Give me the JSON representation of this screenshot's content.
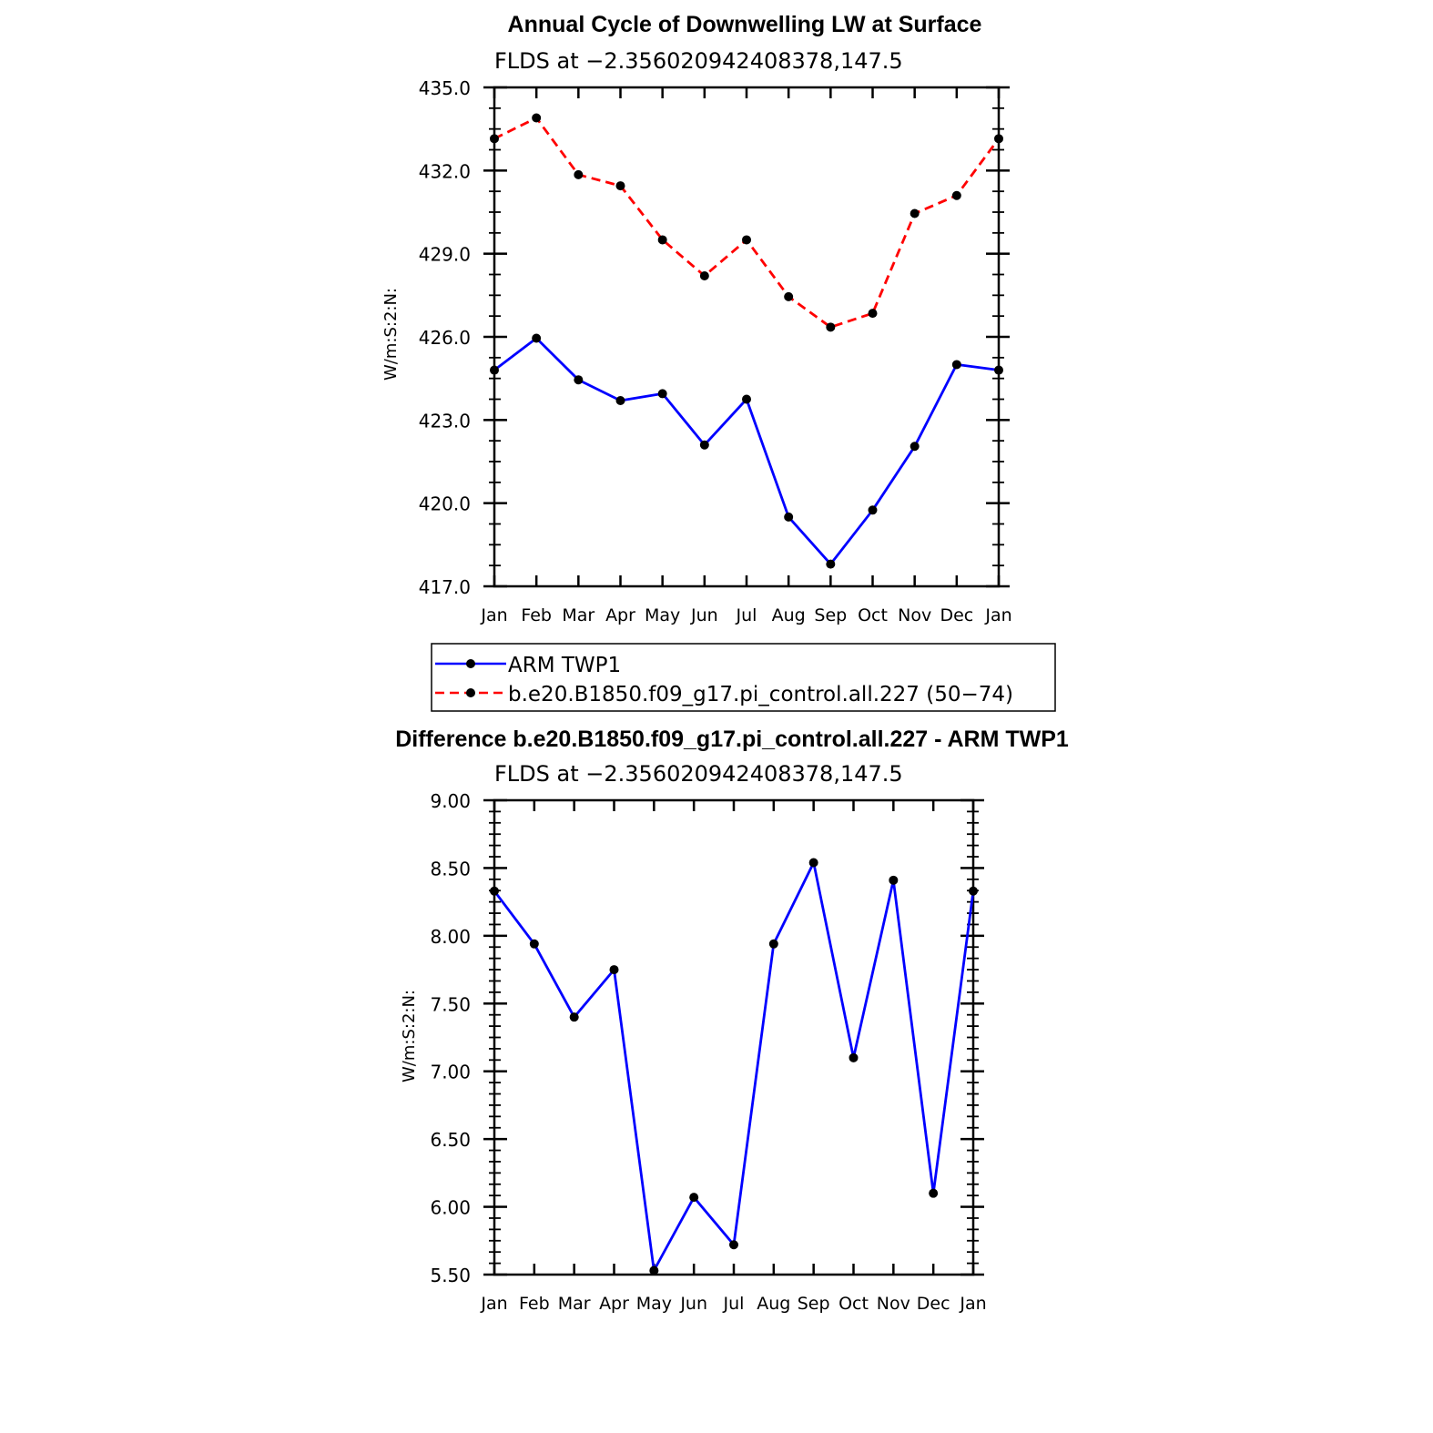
{
  "chart_data": [
    {
      "type": "line",
      "title": "Annual Cycle of Downwelling LW at Surface",
      "subtitle": "FLDS at −2.356020942408378,147.5",
      "xlabel": "",
      "ylabel": "W/m:S:2:N:",
      "categories": [
        "Jan",
        "Feb",
        "Mar",
        "Apr",
        "May",
        "Jun",
        "Jul",
        "Aug",
        "Sep",
        "Oct",
        "Nov",
        "Dec",
        "Jan"
      ],
      "ylim": [
        417.0,
        435.0
      ],
      "yticks": [
        "417.0",
        "420.0",
        "423.0",
        "426.0",
        "429.0",
        "432.0",
        "435.0"
      ],
      "grid": false,
      "legend_position": "bottom",
      "series": [
        {
          "name": "ARM TWP1",
          "color": "#0000ff",
          "dashed": false,
          "values": [
            424.8,
            425.95,
            424.45,
            423.7,
            423.95,
            422.1,
            423.75,
            419.5,
            417.8,
            419.75,
            422.05,
            425.0,
            424.8
          ]
        },
        {
          "name": "b.e20.B1850.f09_g17.pi_control.all.227 (50−74)",
          "color": "#ff0000",
          "dashed": true,
          "values": [
            433.15,
            433.9,
            431.85,
            431.45,
            429.5,
            428.2,
            429.5,
            427.45,
            426.35,
            426.85,
            430.45,
            431.1,
            433.15
          ]
        }
      ]
    },
    {
      "type": "line",
      "title": "Difference b.e20.B1850.f09_g17.pi_control.all.227 - ARM TWP1",
      "subtitle": "FLDS at −2.356020942408378,147.5",
      "xlabel": "",
      "ylabel": "W/m:S:2:N:",
      "categories": [
        "Jan",
        "Feb",
        "Mar",
        "Apr",
        "May",
        "Jun",
        "Jul",
        "Aug",
        "Sep",
        "Oct",
        "Nov",
        "Dec",
        "Jan"
      ],
      "ylim": [
        5.5,
        9.0
      ],
      "yticks": [
        "5.50",
        "6.00",
        "6.50",
        "7.00",
        "7.50",
        "8.00",
        "8.50",
        "9.00"
      ],
      "grid": false,
      "series": [
        {
          "color": "#0000ff",
          "dashed": false,
          "values": [
            8.33,
            7.94,
            7.4,
            7.75,
            5.53,
            6.07,
            5.72,
            7.94,
            8.54,
            7.1,
            8.41,
            6.1,
            8.33
          ]
        }
      ]
    }
  ]
}
